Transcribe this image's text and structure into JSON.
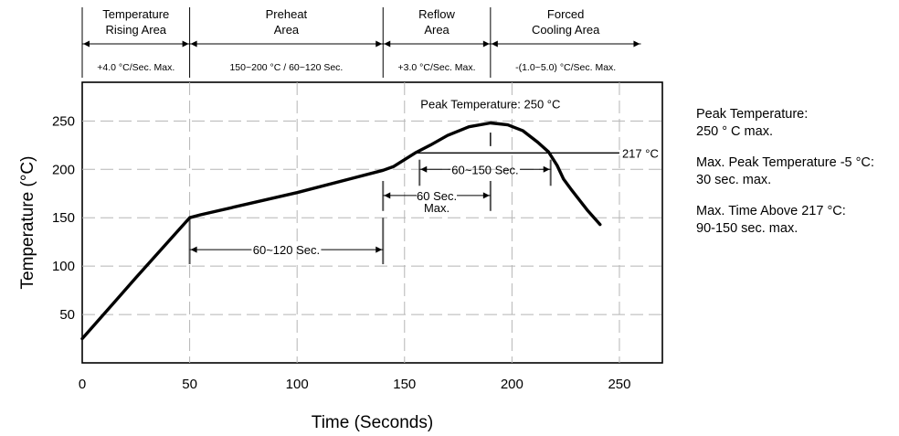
{
  "chart_data": {
    "type": "line",
    "title": "",
    "xlabel": "Time (Seconds)",
    "ylabel": "Temperature (°C)",
    "xlim": [
      0,
      270
    ],
    "ylim": [
      0,
      290
    ],
    "x_ticks": [
      "0",
      "50",
      "100",
      "150",
      "200",
      "250"
    ],
    "y_ticks": [
      "50",
      "100",
      "150",
      "200",
      "250"
    ],
    "grid": true,
    "series": [
      {
        "color": "#000000",
        "points": [
          [
            0,
            25
          ],
          [
            25,
            88
          ],
          [
            50,
            150
          ],
          [
            55,
            153
          ],
          [
            100,
            176
          ],
          [
            140,
            199
          ],
          [
            145,
            203
          ],
          [
            155,
            217
          ],
          [
            162,
            225
          ],
          [
            170,
            235
          ],
          [
            180,
            244
          ],
          [
            190,
            248
          ],
          [
            198,
            246
          ],
          [
            205,
            240
          ],
          [
            212,
            228
          ],
          [
            217,
            218
          ],
          [
            221,
            204
          ],
          [
            224,
            190
          ],
          [
            228,
            178
          ],
          [
            235,
            158
          ],
          [
            241,
            143
          ]
        ]
      }
    ],
    "zones": [
      {
        "name": [
          "Temperature",
          "Rising Area"
        ],
        "start": 0,
        "end": 50,
        "rate": "+4.0 °C/Sec. Max."
      },
      {
        "name": [
          "Preheat",
          "Area"
        ],
        "start": 50,
        "end": 140,
        "rate": "150~200 °C / 60~120 Sec."
      },
      {
        "name": [
          "Reflow",
          "Area"
        ],
        "start": 140,
        "end": 190,
        "rate": "+3.0 °C/Sec. Max."
      },
      {
        "name": [
          "Forced",
          "Cooling Area"
        ],
        "start": 190,
        "end": 260,
        "rate": "-(1.0~5.0) °C/Sec. Max."
      }
    ],
    "reference_line": {
      "y": 217,
      "x_start": 155,
      "x_end": 250,
      "label": "217 °C"
    },
    "peak_label": "Peak Temperature: 250 °C",
    "intervals": [
      {
        "label": [
          "60~120 Sec."
        ],
        "x_start": 50,
        "x_end": 140,
        "y": 117,
        "tick_top": 150,
        "tick_bottom": 102
      },
      {
        "label": [
          "60~150 Sec."
        ],
        "x_start": 157,
        "x_end": 218,
        "y": 200,
        "tick_top": 210,
        "tick_bottom": 183
      },
      {
        "label": [
          "60 Sec.",
          "Max."
        ],
        "x_start": 140,
        "x_end": 190,
        "y": 173,
        "tick_top": 188,
        "tick_bottom": 157
      }
    ]
  },
  "notes": [
    {
      "line1": "Peak Temperature:",
      "line2": "250 ° C max."
    },
    {
      "line1": "Max. Peak Temperature -5 °C:",
      "line2": "30 sec. max."
    },
    {
      "line1": "Max. Time Above 217 °C:",
      "line2": "90-150 sec. max."
    }
  ]
}
